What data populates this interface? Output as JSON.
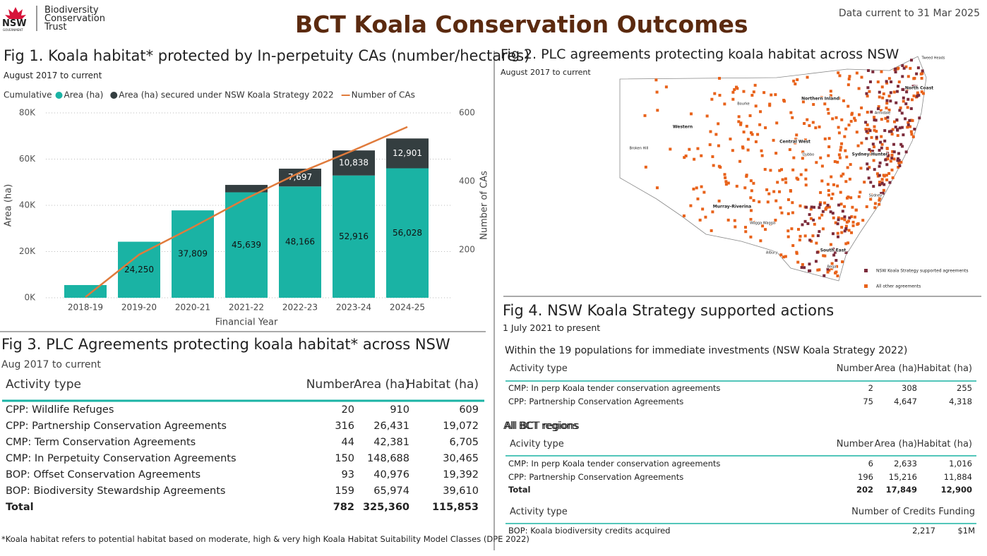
{
  "header": {
    "logo_nsw": "NSW",
    "logo_gov": "GOVERNMENT",
    "logo_org": [
      "Biodiversity",
      "Conservation",
      "Trust"
    ],
    "title": "BCT Koala Conservation Outcomes",
    "data_current": "Data current to 31 Mar 2025"
  },
  "chart_data": {
    "type": "bar",
    "stacked": true,
    "title": "Fig 1. Koala habitat* protected by In-perpetuity CAs (number/hectares)",
    "subtitle": "August 2017 to current",
    "legend_title": "Cumulative",
    "x_label": "Financial Year",
    "y_label": "Area (ha)",
    "y2_label": "Number of CAs",
    "categories": [
      "2018-19",
      "2019-20",
      "2020-21",
      "2021-22",
      "2022-23",
      "2023-24",
      "2024-25"
    ],
    "series": [
      {
        "name": "Area (ha)",
        "color": "#1ab3a4",
        "values": [
          5500,
          24250,
          37809,
          45639,
          48166,
          52916,
          56028
        ],
        "value_labels": [
          null,
          "24,250",
          "37,809",
          "45,639",
          "48,166",
          "52,916",
          "56,028"
        ]
      },
      {
        "name": "Area (ha) secured under NSW Koala Strategy 2022",
        "color": "#343e40",
        "values": [
          null,
          null,
          null,
          3200,
          7697,
          10838,
          12901
        ],
        "value_labels": [
          null,
          null,
          null,
          null,
          "7,697",
          "10,838",
          "12,901"
        ]
      },
      {
        "name": "Number of CAs",
        "type": "line",
        "axis": "y2",
        "color": "#e07b3c",
        "values": [
          62,
          186,
          266,
          350,
          426,
          491,
          559
        ]
      }
    ],
    "ylim": [
      0,
      80000
    ],
    "yticks": [
      {
        "value": 0,
        "label": "0K"
      },
      {
        "value": 20000,
        "label": "20K"
      },
      {
        "value": 40000,
        "label": "40K"
      },
      {
        "value": 60000,
        "label": "60K"
      },
      {
        "value": 80000,
        "label": "80K"
      }
    ],
    "y2lim": [
      60,
      600
    ],
    "y2ticks": [
      200,
      400,
      600
    ],
    "grid": true
  },
  "fig2": {
    "title": "Fig 2. PLC agreements protecting koala habitat across NSW",
    "subtitle": "August 2017 to current",
    "labels": [
      "Tweed Heads",
      "Northern Inland",
      "North Coast",
      "Bourke",
      "Western",
      "Armidale",
      "Central West",
      "Broken Hill",
      "Dubbo",
      "Sydney-Hunter",
      "Sydney",
      "Murray-Riverina",
      "Wagga Wagga",
      "Albury",
      "South East",
      "Bega"
    ],
    "legend": [
      "NSW Koala Strategy supported agreements",
      "All other agreements"
    ]
  },
  "fig3": {
    "title": "Fig 3. PLC Agreements protecting koala habitat* across NSW",
    "subtitle": "Aug 2017 to current",
    "columns": [
      "Activity type",
      "Number",
      "Area (ha)",
      "Habitat (ha)"
    ],
    "rows": [
      [
        "CPP: Wildlife Refuges",
        "20",
        "910",
        "609"
      ],
      [
        "CPP: Partnership Conservation Agreements",
        "316",
        "26,431",
        "19,072"
      ],
      [
        "CMP: Term Conservation Agreements",
        "44",
        "42,381",
        "6,705"
      ],
      [
        "CMP: In Perpetuity Conservation Agreements",
        "150",
        "148,688",
        "30,465"
      ],
      [
        "BOP: Offset Conservation Agreements",
        "93",
        "40,976",
        "19,392"
      ],
      [
        "BOP: Biodiversity Stewardship Agreements",
        "159",
        "65,974",
        "39,610"
      ]
    ],
    "total": [
      "Total",
      "782",
      "325,360",
      "115,853"
    ],
    "footnote": "*Koala habitat refers to potential habitat based on moderate, high & very high Koala Habitat Suitability Model Classes (DPE 2022)"
  },
  "fig4": {
    "title": "Fig 4. NSW Koala Strategy supported actions",
    "subtitle": "1 July 2021 to present",
    "section1": {
      "heading": "Within the 19 populations for immediate investments (NSW Koala Strategy 2022)",
      "columns": [
        "Activity type",
        "Number",
        "Area (ha)",
        "Habitat (ha)"
      ],
      "rows": [
        [
          "CMP: In perp Koala tender conservation agreements",
          "2",
          "308",
          "255"
        ],
        [
          "CPP: Partnership Conservation Agreements",
          "75",
          "4,647",
          "4,318"
        ]
      ]
    },
    "section2": {
      "heading": "All BCT regions",
      "columns": [
        "Acivity type",
        "Number",
        "Area (ha)",
        "Habitat (ha)"
      ],
      "rows": [
        [
          "CMP: In perp Koala tender conservation agreements",
          "6",
          "2,633",
          "1,016"
        ],
        [
          "CPP: Partnership Conservation Agreements",
          "196",
          "15,216",
          "11,884"
        ]
      ],
      "total": [
        "Total",
        "202",
        "17,849",
        "12,900"
      ]
    },
    "section3": {
      "columns": [
        "Activity type",
        "Number of Credits",
        "Funding"
      ],
      "rows": [
        [
          "BOP: Koala biodiversity credits acquired",
          "2,217",
          "$1M"
        ]
      ]
    }
  }
}
